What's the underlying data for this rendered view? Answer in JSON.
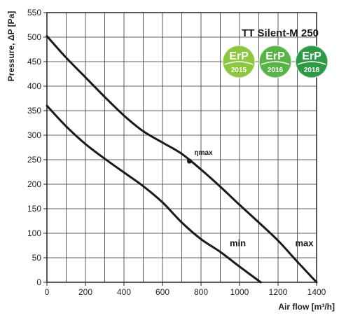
{
  "chart_data": {
    "type": "line",
    "title": "TT Silent-M 250",
    "xlabel": "Air flow [m³/h]",
    "ylabel": "Pressure, ΔP [Pa]",
    "xlim": [
      0,
      1400
    ],
    "ylim": [
      0,
      550
    ],
    "x_ticks": [
      0,
      200,
      400,
      600,
      800,
      1000,
      1200,
      1400
    ],
    "y_ticks": [
      0,
      50,
      100,
      150,
      200,
      250,
      300,
      350,
      400,
      450,
      500,
      550
    ],
    "grid": true,
    "series": [
      {
        "name": "max",
        "points": [
          [
            0,
            502
          ],
          [
            100,
            458
          ],
          [
            200,
            418
          ],
          [
            300,
            378
          ],
          [
            400,
            340
          ],
          [
            500,
            308
          ],
          [
            600,
            285
          ],
          [
            700,
            262
          ],
          [
            800,
            230
          ],
          [
            900,
            195
          ],
          [
            1000,
            158
          ],
          [
            1100,
            122
          ],
          [
            1200,
            85
          ],
          [
            1300,
            42
          ],
          [
            1400,
            0
          ]
        ]
      },
      {
        "name": "min",
        "points": [
          [
            0,
            360
          ],
          [
            100,
            318
          ],
          [
            200,
            282
          ],
          [
            300,
            252
          ],
          [
            400,
            224
          ],
          [
            500,
            196
          ],
          [
            600,
            163
          ],
          [
            700,
            122
          ],
          [
            800,
            88
          ],
          [
            900,
            62
          ],
          [
            1000,
            32
          ],
          [
            1110,
            0
          ]
        ]
      }
    ],
    "annotations": [
      {
        "label": "ηmax",
        "x": 740,
        "y": 247
      }
    ],
    "badges": [
      {
        "top": "ErP",
        "year": "2015",
        "color": "#8dc63f"
      },
      {
        "top": "ErP",
        "year": "2016",
        "color": "#57b446"
      },
      {
        "top": "ErP",
        "year": "2018",
        "color": "#2f9a45"
      }
    ]
  }
}
